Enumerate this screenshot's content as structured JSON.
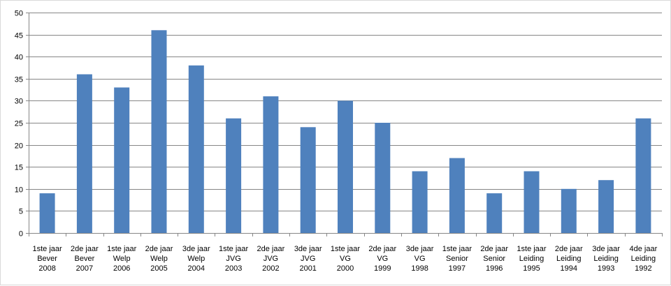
{
  "chart_data": {
    "type": "bar",
    "title": "",
    "xlabel": "",
    "ylabel": "",
    "ylim": [
      0,
      50
    ],
    "ytick_step": 5,
    "grid": true,
    "legend": "none",
    "bar_color": "#4f81bd",
    "categories": [
      [
        "1ste jaar",
        "Bever",
        "2008"
      ],
      [
        "2de jaar",
        "Bever",
        "2007"
      ],
      [
        "1ste jaar",
        "Welp",
        "2006"
      ],
      [
        "2de jaar",
        "Welp",
        "2005"
      ],
      [
        "3de jaar",
        "Welp",
        "2004"
      ],
      [
        "1ste jaar",
        "JVG",
        "2003"
      ],
      [
        "2de jaar",
        "JVG",
        "2002"
      ],
      [
        "3de jaar",
        "JVG",
        "2001"
      ],
      [
        "1ste jaar",
        "VG",
        "2000"
      ],
      [
        "2de jaar",
        "VG",
        "1999"
      ],
      [
        "3de jaar",
        "VG",
        "1998"
      ],
      [
        "1ste jaar",
        "Senior",
        "1997"
      ],
      [
        "2de jaar",
        "Senior",
        "1996"
      ],
      [
        "1ste jaar",
        "Leiding",
        "1995"
      ],
      [
        "2de jaar",
        "Leiding",
        "1994"
      ],
      [
        "3de jaar",
        "Leiding",
        "1993"
      ],
      [
        "4de jaar",
        "Leiding",
        "1992"
      ]
    ],
    "values": [
      9,
      36,
      33,
      46,
      38,
      26,
      31,
      24,
      30,
      25,
      14,
      17,
      9,
      14,
      10,
      12,
      26
    ]
  }
}
